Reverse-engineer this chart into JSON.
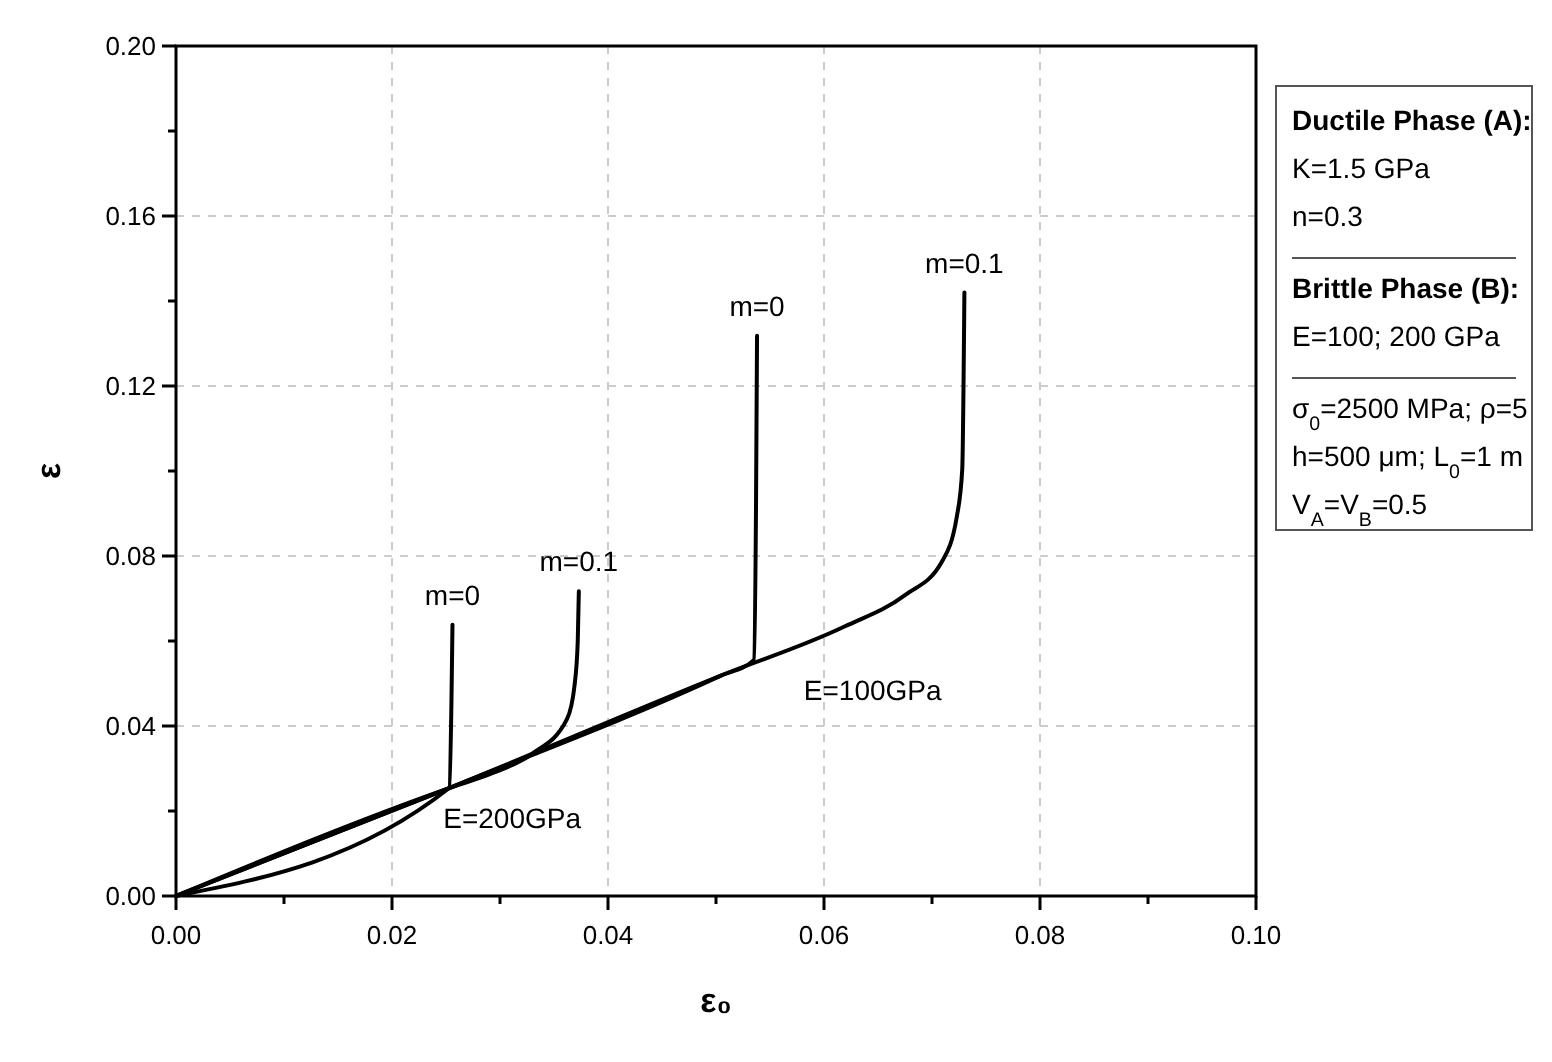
{
  "chart_data": {
    "type": "line",
    "xlabel": "ε₀",
    "ylabel": "ε",
    "xlim": [
      0,
      0.1
    ],
    "ylim": [
      0,
      0.2
    ],
    "xticks": [
      {
        "value": 0,
        "label": "0.00"
      },
      {
        "value": 0.01,
        "label": null
      },
      {
        "value": 0.02,
        "label": "0.02"
      },
      {
        "value": 0.03,
        "label": null
      },
      {
        "value": 0.04,
        "label": "0.04"
      },
      {
        "value": 0.05,
        "label": null
      },
      {
        "value": 0.06,
        "label": "0.06"
      },
      {
        "value": 0.07,
        "label": null
      },
      {
        "value": 0.08,
        "label": "0.08"
      },
      {
        "value": 0.09,
        "label": null
      },
      {
        "value": 0.1,
        "label": "0.10"
      }
    ],
    "yticks": [
      {
        "value": 0,
        "label": "0.00"
      },
      {
        "value": 0.02,
        "label": null
      },
      {
        "value": 0.04,
        "label": "0.04"
      },
      {
        "value": 0.06,
        "label": null
      },
      {
        "value": 0.08,
        "label": "0.08"
      },
      {
        "value": 0.1,
        "label": null
      },
      {
        "value": 0.12,
        "label": "0.12"
      },
      {
        "value": 0.14,
        "label": null
      },
      {
        "value": 0.16,
        "label": "0.16"
      },
      {
        "value": 0.18,
        "label": null
      },
      {
        "value": 0.2,
        "label": "0.20"
      }
    ],
    "grid": true,
    "marker": "none",
    "line_style": "solid",
    "series": [
      {
        "color": "#000000",
        "x": [
          0,
          0.0253,
          0.0255,
          0.0256
        ],
        "values": [
          0,
          0.0254,
          0.045,
          0.0638
        ]
      },
      {
        "color": "#000000",
        "x": [
          0,
          0.0253,
          0.0294,
          0.033,
          0.0362,
          0.0369,
          0.0372,
          0.0373
        ],
        "values": [
          0,
          0.0254,
          0.029,
          0.0335,
          0.0416,
          0.0495,
          0.06,
          0.0717
        ]
      },
      {
        "color": "#000000",
        "x": [
          0,
          0.0253,
          0.0504,
          0.0535,
          0.0537,
          0.0538
        ],
        "values": [
          0,
          0.0254,
          0.0518,
          0.0555,
          0.09,
          0.1318
        ]
      },
      {
        "color": "#000000",
        "x": [
          0,
          0.0253,
          0.0504,
          0.0619,
          0.0675,
          0.0709,
          0.0723,
          0.0728,
          0.073
        ],
        "values": [
          0,
          0.0254,
          0.0518,
          0.0634,
          0.0708,
          0.0786,
          0.0893,
          0.1004,
          0.142
        ]
      }
    ],
    "annotations": [
      {
        "text": "m=0",
        "x": 0.0256,
        "y": 0.0638
      },
      {
        "text": "m=0.1",
        "x": 0.0373,
        "y": 0.0717
      },
      {
        "text": "m=0",
        "x": 0.0538,
        "y": 0.1318
      },
      {
        "text": "m=0.1",
        "x": 0.073,
        "y": 0.142
      },
      {
        "text": "E=200GPa",
        "x": 0.0253,
        "y": 0.0254
      },
      {
        "text": "E=100GPa",
        "x": 0.0535,
        "y": 0.0555
      },
      "Ductile Phase (A):",
      "K=1.5 GPa",
      "n=0.3",
      "Brittle Phase (B):",
      "E=100; 200 GPa",
      "σ$_{0}$=2500 MPa; ρ=5",
      "h=500 μm; L$_{0}$=1 m",
      "V$_{A}$=V$_{B}$=0.5"
    ]
  }
}
